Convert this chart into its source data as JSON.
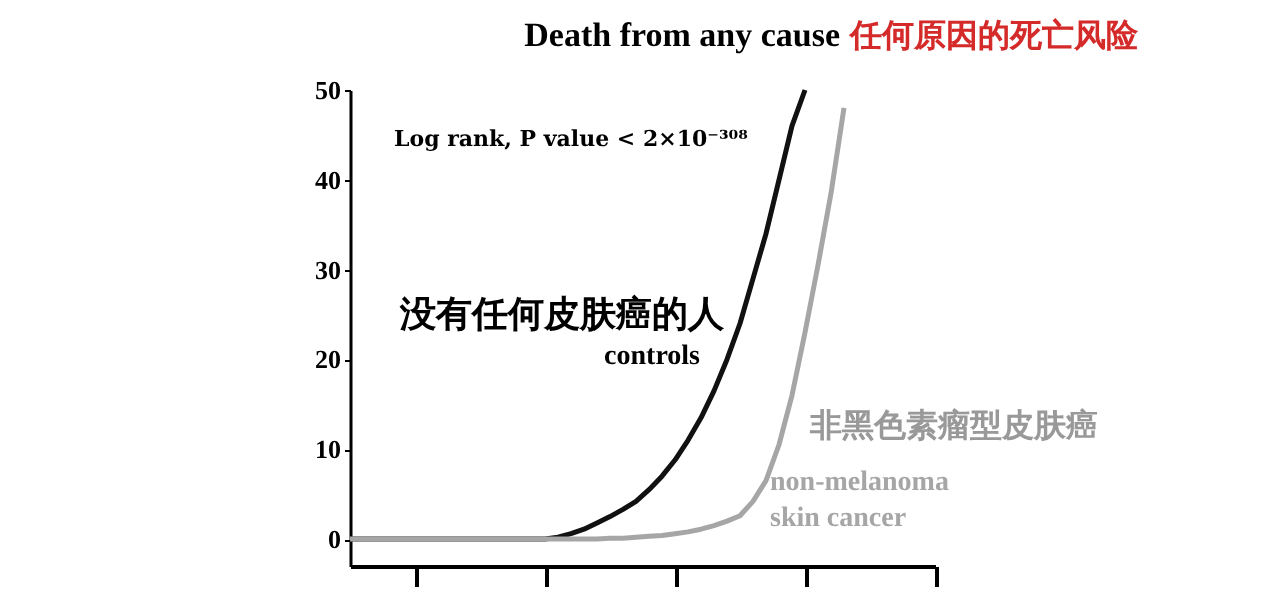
{
  "chart_data": {
    "type": "line",
    "title": "Death from any cause",
    "subtitle": "任何原因的死亡风险",
    "categories": [
      null,
      null,
      null,
      null,
      null,
      null,
      null,
      null,
      null,
      null,
      null,
      null,
      null,
      null,
      null,
      null,
      null,
      null,
      null,
      null,
      null,
      null,
      null,
      null,
      null,
      null,
      null,
      null,
      null,
      null,
      null,
      null,
      null,
      null,
      null,
      null,
      null,
      null,
      null,
      null,
      null,
      null,
      null,
      null,
      null,
      null
    ],
    "ylim": [
      -3,
      50
    ],
    "yticks": [
      0,
      10,
      20,
      30,
      40,
      50
    ],
    "grid": false,
    "legend": false,
    "marker": "none",
    "line_style": "solid",
    "series": [
      {
        "name": "controls",
        "color": "#111111",
        "values": [
          0,
          0,
          0,
          0,
          0,
          0,
          0,
          0,
          0,
          0,
          0,
          0,
          0,
          0,
          0,
          0,
          0.2,
          0.6,
          1.1,
          1.8,
          2.5,
          3.3,
          4.2,
          5.5,
          7,
          8.8,
          11,
          13.5,
          16.5,
          20,
          24,
          29,
          34,
          40,
          46,
          50,
          null,
          null,
          null,
          null,
          null,
          null,
          null,
          null,
          null,
          null
        ]
      },
      {
        "name": "non-melanoma skin cancer",
        "color": "#a6a6a6",
        "values": [
          0,
          0,
          0,
          0,
          0,
          0,
          0,
          0,
          0,
          0,
          0,
          0,
          0,
          0,
          0,
          0,
          0,
          0,
          0,
          0,
          0.1,
          0.1,
          0.2,
          0.3,
          0.4,
          0.6,
          0.8,
          1.1,
          1.5,
          2,
          2.6,
          4.2,
          6.5,
          10.5,
          16,
          23,
          30.5,
          38.5,
          48,
          null,
          null,
          null,
          null,
          null,
          null,
          null
        ]
      }
    ],
    "annotations": [
      "Log rank, P value < 2×10⁻³⁰⁸",
      "没有任何皮肤癌的人",
      "非黑色素瘤型皮肤癌"
    ]
  }
}
